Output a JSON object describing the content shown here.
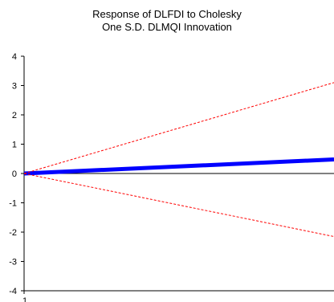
{
  "chart_data": {
    "type": "line",
    "title_lines": [
      "Response of DLFDI to Cholesky",
      "One S.D. DLMQI Innovation"
    ],
    "xlabel": "",
    "ylabel": "",
    "x_tick_labels": [
      "1"
    ],
    "y_ticks": [
      4,
      3,
      2,
      1,
      0,
      -1,
      -2,
      -3,
      -4
    ],
    "y_tick_labels": [
      "4",
      "3",
      "2",
      "1",
      "0",
      "-1",
      "-2",
      "-3",
      "-4"
    ],
    "ylim": [
      -4,
      4
    ],
    "x": [
      1,
      10
    ],
    "series": [
      {
        "role": "response",
        "values": [
          0,
          0.48
        ],
        "color": "#0000ff"
      },
      {
        "role": "upper-band",
        "values": [
          0,
          3.1
        ],
        "color": "#ff0000"
      },
      {
        "role": "lower-band",
        "values": [
          0,
          -2.15
        ],
        "color": "#ff0000"
      }
    ],
    "zero_line": true,
    "grid": false,
    "legend": "none"
  }
}
